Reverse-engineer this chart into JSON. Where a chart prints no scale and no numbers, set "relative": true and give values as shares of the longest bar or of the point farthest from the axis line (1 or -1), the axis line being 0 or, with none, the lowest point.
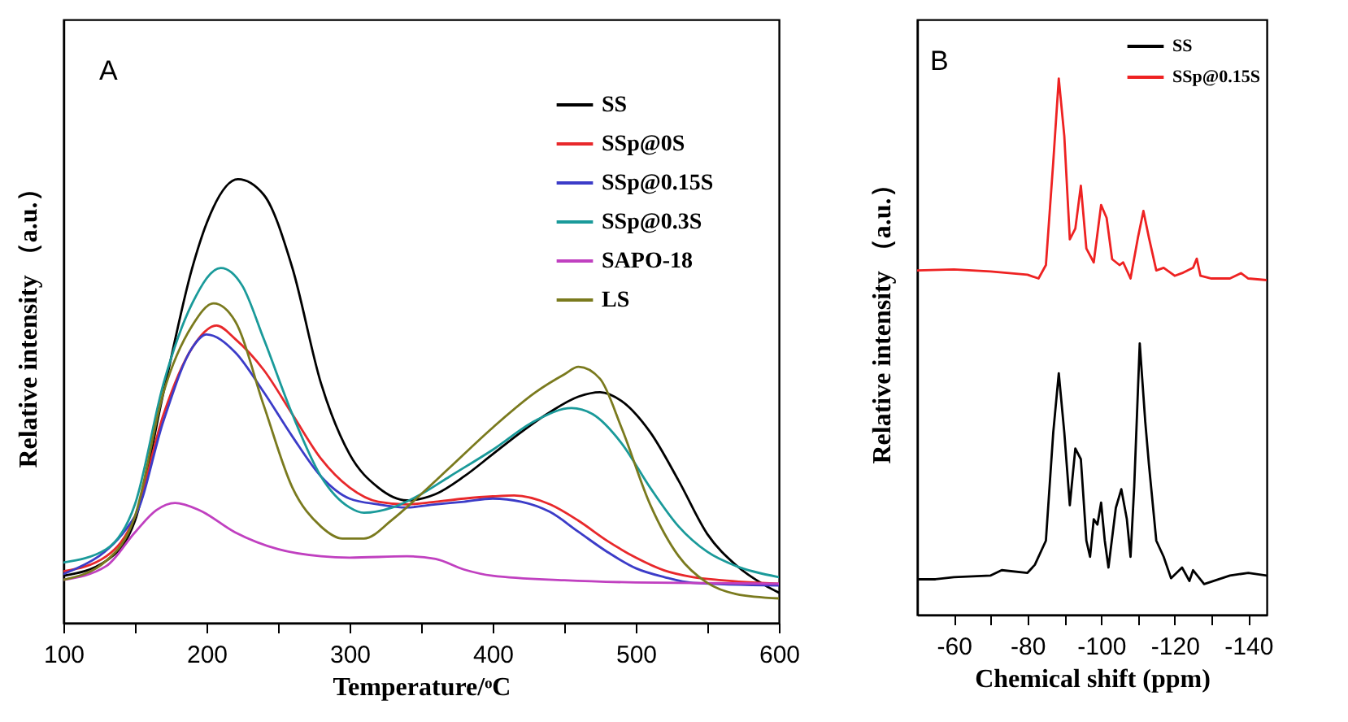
{
  "chart_data": [
    {
      "type": "line",
      "relative": true,
      "annotations": [
        "A"
      ],
      "xlabel": "Temperature/ᵒC",
      "ylabel": "Relative intensity （a.u.）",
      "xlim": [
        100,
        600
      ],
      "xticks": [
        100,
        {
          "value": 150,
          "label": null
        },
        200,
        {
          "value": 250,
          "label": null
        },
        300,
        {
          "value": 350,
          "label": null
        },
        400,
        {
          "value": 450,
          "label": null
        },
        500,
        {
          "value": 550,
          "label": null
        },
        600
      ],
      "tick_labels": "x",
      "legend": "top right",
      "marker": "none",
      "line_style": "solid",
      "series": [
        {
          "name": "SS",
          "color": "#000000",
          "x": [
            100,
            130,
            150,
            170,
            190,
            200,
            222,
            240,
            260,
            280,
            300,
            320,
            340,
            360,
            380,
            400,
            420,
            440,
            460,
            475,
            490,
            510,
            530,
            550,
            570,
            590,
            600
          ],
          "values": [
            0.106,
            0.14,
            0.23,
            0.52,
            0.8,
            0.9,
            1.0,
            0.965,
            0.8,
            0.54,
            0.38,
            0.305,
            0.276,
            0.29,
            0.33,
            0.38,
            0.43,
            0.475,
            0.51,
            0.52,
            0.5,
            0.43,
            0.32,
            0.2,
            0.13,
            0.085,
            0.068
          ]
        },
        {
          "name": "SSp@0S",
          "color": "#e8282b",
          "x": [
            100,
            130,
            150,
            170,
            190,
            207,
            220,
            240,
            260,
            280,
            300,
            320,
            340,
            360,
            380,
            400,
            415,
            440,
            460,
            480,
            500,
            520,
            540,
            560,
            600
          ],
          "values": [
            0.116,
            0.15,
            0.24,
            0.47,
            0.62,
            0.67,
            0.64,
            0.57,
            0.47,
            0.37,
            0.305,
            0.273,
            0.267,
            0.273,
            0.28,
            0.285,
            0.287,
            0.267,
            0.23,
            0.185,
            0.147,
            0.118,
            0.103,
            0.096,
            0.088
          ]
        },
        {
          "name": "SSp@0.15S",
          "color": "#3c3cc8",
          "x": [
            100,
            150,
            170,
            190,
            200,
            220,
            240,
            260,
            280,
            300,
            320,
            340,
            360,
            380,
            400,
            420,
            440,
            460,
            480,
            500,
            520,
            540,
            600
          ],
          "values": [
            0.11,
            0.24,
            0.456,
            0.62,
            0.65,
            0.61,
            0.52,
            0.42,
            0.33,
            0.28,
            0.267,
            0.26,
            0.267,
            0.273,
            0.28,
            0.273,
            0.25,
            0.205,
            0.16,
            0.123,
            0.103,
            0.09,
            0.084
          ]
        },
        {
          "name": "SSp@0.3S",
          "color": "#1a9a9a",
          "x": [
            100,
            130,
            150,
            170,
            190,
            210,
            225,
            240,
            260,
            280,
            300,
            310,
            330,
            350,
            370,
            400,
            430,
            455,
            470,
            490,
            510,
            530,
            550,
            570,
            600
          ],
          "values": [
            0.136,
            0.166,
            0.267,
            0.54,
            0.72,
            0.8,
            0.76,
            0.64,
            0.47,
            0.33,
            0.26,
            0.248,
            0.26,
            0.29,
            0.33,
            0.39,
            0.456,
            0.484,
            0.47,
            0.405,
            0.305,
            0.217,
            0.16,
            0.128,
            0.103
          ]
        },
        {
          "name": "SAPO-18",
          "color": "#c040c0",
          "x": [
            100,
            130,
            150,
            165,
            178,
            195,
            220,
            250,
            280,
            300,
            340,
            360,
            380,
            400,
            450,
            500,
            600
          ],
          "values": [
            0.097,
            0.128,
            0.204,
            0.254,
            0.27,
            0.254,
            0.204,
            0.166,
            0.15,
            0.147,
            0.15,
            0.144,
            0.12,
            0.106,
            0.096,
            0.091,
            0.088
          ]
        },
        {
          "name": "LS",
          "color": "#7a7a1e",
          "x": [
            100,
            130,
            150,
            170,
            190,
            205,
            220,
            240,
            260,
            280,
            295,
            310,
            330,
            350,
            370,
            400,
            430,
            450,
            460,
            475,
            490,
            510,
            530,
            550,
            570,
            600
          ],
          "values": [
            0.097,
            0.14,
            0.24,
            0.52,
            0.67,
            0.72,
            0.68,
            0.49,
            0.305,
            0.217,
            0.19,
            0.19,
            0.233,
            0.29,
            0.35,
            0.44,
            0.52,
            0.56,
            0.577,
            0.55,
            0.44,
            0.267,
            0.15,
            0.09,
            0.065,
            0.055
          ]
        }
      ]
    },
    {
      "type": "line",
      "relative": true,
      "annotations": [
        "B"
      ],
      "xlabel": "Chemical shift (ppm)",
      "ylabel": "Relative intensity （a.u.）",
      "xlim": [
        -50,
        -145
      ],
      "xticks": [
        -60,
        {
          "value": -70,
          "label": null
        },
        -80,
        {
          "value": -90,
          "label": null
        },
        -100,
        {
          "value": -110,
          "label": null
        },
        -120,
        {
          "value": -130,
          "label": null
        },
        -140
      ],
      "tick_labels": "x",
      "legend": "top right",
      "marker": "none",
      "line_style": "solid",
      "series": [
        {
          "name": "SS",
          "color": "#000000",
          "x": [
            -50,
            -55,
            -60,
            -70,
            -73,
            -80,
            -82,
            -85,
            -87,
            -88.5,
            -90,
            -91.5,
            -93,
            -94.5,
            -96,
            -97,
            -98,
            -99,
            -100,
            -101,
            -102,
            -104,
            -105.5,
            -107,
            -108,
            -109,
            -110.5,
            -112,
            -113,
            -115,
            -117,
            -119,
            -122,
            -124,
            -125,
            -128,
            -135,
            -140,
            -145
          ],
          "values": [
            0.066,
            0.066,
            0.07,
            0.073,
            0.083,
            0.078,
            0.093,
            0.138,
            0.34,
            0.45,
            0.34,
            0.204,
            0.31,
            0.29,
            0.138,
            0.108,
            0.178,
            0.168,
            0.209,
            0.138,
            0.088,
            0.199,
            0.234,
            0.178,
            0.108,
            0.239,
            0.506,
            0.36,
            0.28,
            0.138,
            0.108,
            0.068,
            0.088,
            0.063,
            0.083,
            0.057,
            0.073,
            0.078,
            0.073
          ]
        },
        {
          "name": "SSp@0.15S",
          "color": "#ee2222",
          "x": [
            -50,
            -60,
            -70,
            -80,
            -83,
            -85,
            -87,
            -88.5,
            -90,
            -91.5,
            -93,
            -94.5,
            -96,
            -98,
            -100,
            -101.5,
            -103,
            -105,
            -106,
            -108,
            -110,
            -111.5,
            -113,
            -115,
            -117,
            -120,
            -122,
            -125,
            -126,
            -127,
            -130,
            -135,
            -138,
            -140,
            -145
          ],
          "values": [
            0.642,
            0.644,
            0.64,
            0.634,
            0.627,
            0.652,
            0.844,
            1.0,
            0.893,
            0.7,
            0.72,
            0.8,
            0.683,
            0.657,
            0.764,
            0.74,
            0.663,
            0.652,
            0.657,
            0.627,
            0.703,
            0.753,
            0.703,
            0.642,
            0.647,
            0.632,
            0.637,
            0.647,
            0.664,
            0.632,
            0.627,
            0.627,
            0.637,
            0.627,
            0.624
          ]
        }
      ]
    }
  ]
}
